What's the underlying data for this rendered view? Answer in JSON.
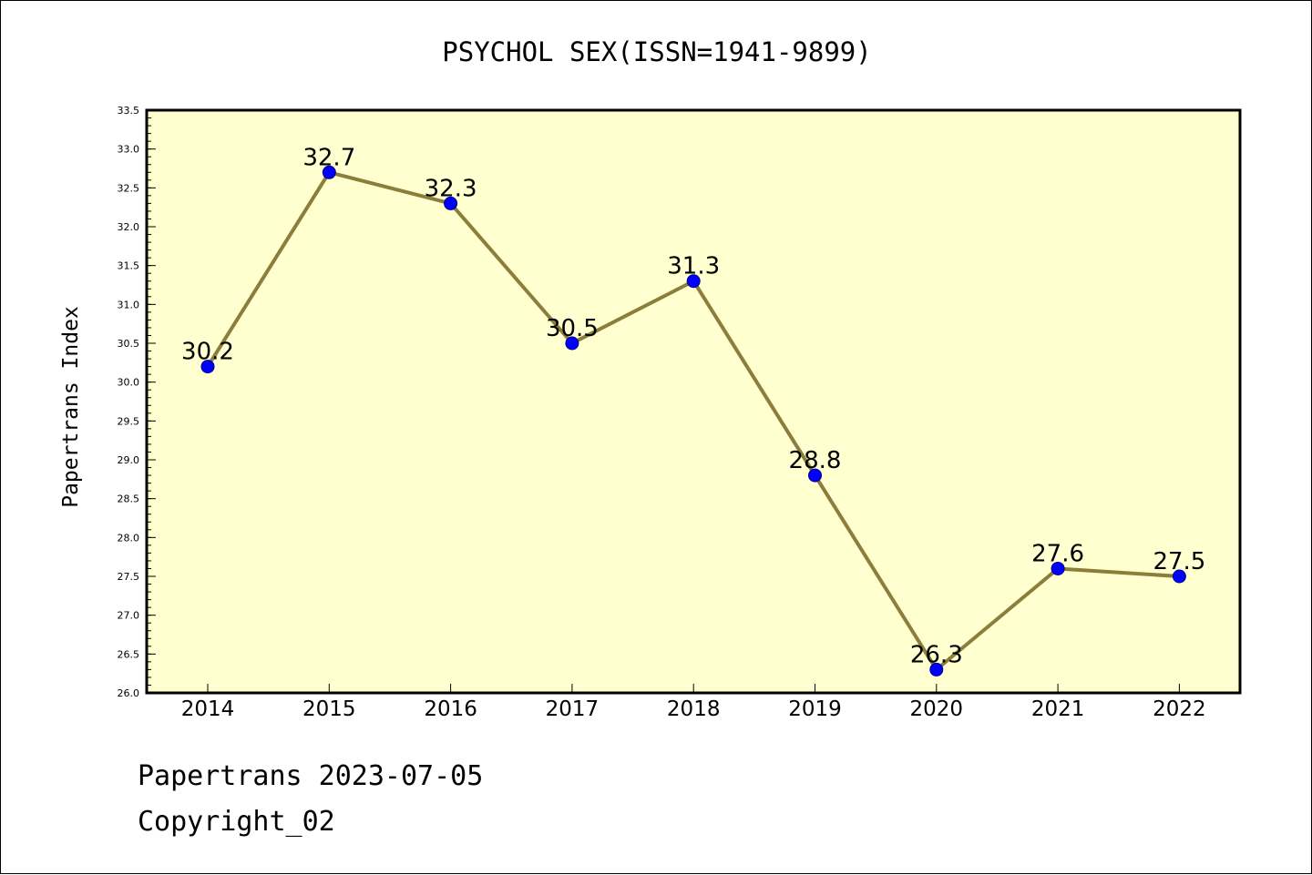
{
  "chart_data": {
    "type": "line",
    "title": "PSYCHOL SEX(ISSN=1941-9899)",
    "ylabel": "Papertrans Index",
    "xlabel": "",
    "categories": [
      "2014",
      "2015",
      "2016",
      "2017",
      "2018",
      "2019",
      "2020",
      "2021",
      "2022"
    ],
    "values": [
      30.2,
      32.7,
      32.3,
      30.5,
      31.3,
      28.8,
      26.3,
      27.6,
      27.5
    ],
    "data_labels": [
      "30.2",
      "32.7",
      "32.3",
      "30.5",
      "31.3",
      "28.8",
      "26.3",
      "27.6",
      "27.5"
    ],
    "ylim": [
      26.0,
      33.5
    ],
    "yticks": [
      "26.0",
      "26.5",
      "27.0",
      "27.5",
      "28.0",
      "28.5",
      "29.0",
      "29.5",
      "30.0",
      "30.5",
      "31.0",
      "31.5",
      "32.0",
      "32.5",
      "33.0",
      "33.5"
    ],
    "grid": false,
    "legend": "none",
    "colors": {
      "plot_background": "#FFFFD0",
      "line": "#8B7D3A",
      "marker_fill": "#0000FF",
      "marker_edge": "#00008B"
    }
  },
  "footer": {
    "line1": "Papertrans 2023-07-05",
    "line2": "Copyright_02"
  }
}
